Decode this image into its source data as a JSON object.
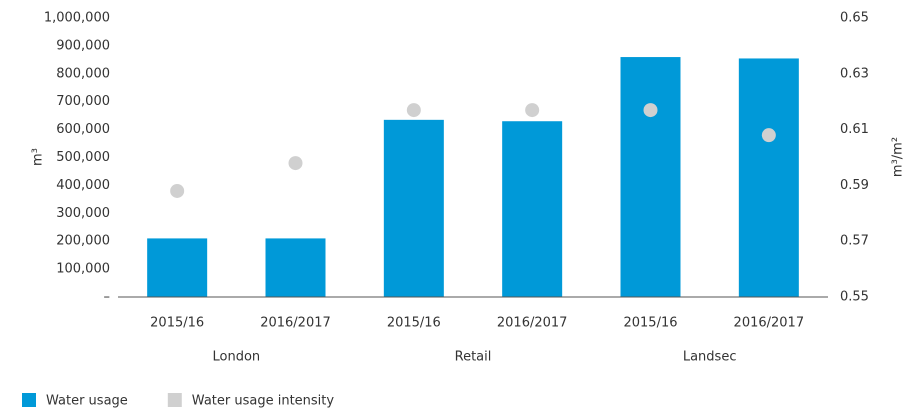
{
  "chart_data": {
    "type": "bar",
    "categories": [
      "2015/16",
      "2016/2017",
      "2015/16",
      "2016/2017",
      "2015/16",
      "2016/2017"
    ],
    "groups": [
      "London",
      "Retail",
      "Landsec"
    ],
    "series": [
      {
        "name": "Water usage",
        "type": "bar",
        "color": "#0099d8",
        "values": [
          210000,
          210000,
          635000,
          630000,
          860000,
          855000
        ]
      },
      {
        "name": "Water usage intensity",
        "type": "scatter",
        "axis": "y2",
        "color": "#d0d0d0",
        "values": [
          0.588,
          0.598,
          0.617,
          0.617,
          0.617,
          0.608
        ]
      }
    ],
    "ylabel": "m³",
    "y2label": "m³/m²",
    "ylim": [
      0,
      1000000
    ],
    "yticks": [
      {
        "value": 0,
        "label": "–"
      },
      {
        "value": 100000,
        "label": "100,000"
      },
      {
        "value": 200000,
        "label": "200,000"
      },
      {
        "value": 300000,
        "label": "300,000"
      },
      {
        "value": 400000,
        "label": "400,000"
      },
      {
        "value": 500000,
        "label": "500,000"
      },
      {
        "value": 600000,
        "label": "600,000"
      },
      {
        "value": 700000,
        "label": "700,000"
      },
      {
        "value": 800000,
        "label": "800,000"
      },
      {
        "value": 900000,
        "label": "900,000"
      },
      {
        "value": 1000000,
        "label": "1,000,000"
      }
    ],
    "y2lim": [
      0.55,
      0.65
    ],
    "y2ticks": [
      0.55,
      0.57,
      0.59,
      0.61,
      0.63,
      0.65
    ],
    "legend": "bottom-left"
  }
}
